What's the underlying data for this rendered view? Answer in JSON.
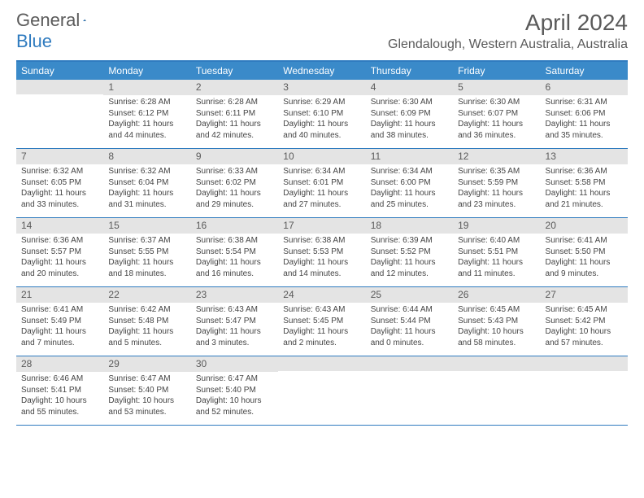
{
  "brand": {
    "general": "General",
    "blue": "Blue"
  },
  "title": "April 2024",
  "location": "Glendalough, Western Australia, Australia",
  "colors": {
    "header_bg": "#3a8ac9",
    "border": "#2f7bbf",
    "daynum_bg": "#e4e4e4",
    "text": "#5a5a5a"
  },
  "dayNames": [
    "Sunday",
    "Monday",
    "Tuesday",
    "Wednesday",
    "Thursday",
    "Friday",
    "Saturday"
  ],
  "weeks": [
    [
      null,
      {
        "n": "1",
        "sr": "Sunrise: 6:28 AM",
        "ss": "Sunset: 6:12 PM",
        "d1": "Daylight: 11 hours",
        "d2": "and 44 minutes."
      },
      {
        "n": "2",
        "sr": "Sunrise: 6:28 AM",
        "ss": "Sunset: 6:11 PM",
        "d1": "Daylight: 11 hours",
        "d2": "and 42 minutes."
      },
      {
        "n": "3",
        "sr": "Sunrise: 6:29 AM",
        "ss": "Sunset: 6:10 PM",
        "d1": "Daylight: 11 hours",
        "d2": "and 40 minutes."
      },
      {
        "n": "4",
        "sr": "Sunrise: 6:30 AM",
        "ss": "Sunset: 6:09 PM",
        "d1": "Daylight: 11 hours",
        "d2": "and 38 minutes."
      },
      {
        "n": "5",
        "sr": "Sunrise: 6:30 AM",
        "ss": "Sunset: 6:07 PM",
        "d1": "Daylight: 11 hours",
        "d2": "and 36 minutes."
      },
      {
        "n": "6",
        "sr": "Sunrise: 6:31 AM",
        "ss": "Sunset: 6:06 PM",
        "d1": "Daylight: 11 hours",
        "d2": "and 35 minutes."
      }
    ],
    [
      {
        "n": "7",
        "sr": "Sunrise: 6:32 AM",
        "ss": "Sunset: 6:05 PM",
        "d1": "Daylight: 11 hours",
        "d2": "and 33 minutes."
      },
      {
        "n": "8",
        "sr": "Sunrise: 6:32 AM",
        "ss": "Sunset: 6:04 PM",
        "d1": "Daylight: 11 hours",
        "d2": "and 31 minutes."
      },
      {
        "n": "9",
        "sr": "Sunrise: 6:33 AM",
        "ss": "Sunset: 6:02 PM",
        "d1": "Daylight: 11 hours",
        "d2": "and 29 minutes."
      },
      {
        "n": "10",
        "sr": "Sunrise: 6:34 AM",
        "ss": "Sunset: 6:01 PM",
        "d1": "Daylight: 11 hours",
        "d2": "and 27 minutes."
      },
      {
        "n": "11",
        "sr": "Sunrise: 6:34 AM",
        "ss": "Sunset: 6:00 PM",
        "d1": "Daylight: 11 hours",
        "d2": "and 25 minutes."
      },
      {
        "n": "12",
        "sr": "Sunrise: 6:35 AM",
        "ss": "Sunset: 5:59 PM",
        "d1": "Daylight: 11 hours",
        "d2": "and 23 minutes."
      },
      {
        "n": "13",
        "sr": "Sunrise: 6:36 AM",
        "ss": "Sunset: 5:58 PM",
        "d1": "Daylight: 11 hours",
        "d2": "and 21 minutes."
      }
    ],
    [
      {
        "n": "14",
        "sr": "Sunrise: 6:36 AM",
        "ss": "Sunset: 5:57 PM",
        "d1": "Daylight: 11 hours",
        "d2": "and 20 minutes."
      },
      {
        "n": "15",
        "sr": "Sunrise: 6:37 AM",
        "ss": "Sunset: 5:55 PM",
        "d1": "Daylight: 11 hours",
        "d2": "and 18 minutes."
      },
      {
        "n": "16",
        "sr": "Sunrise: 6:38 AM",
        "ss": "Sunset: 5:54 PM",
        "d1": "Daylight: 11 hours",
        "d2": "and 16 minutes."
      },
      {
        "n": "17",
        "sr": "Sunrise: 6:38 AM",
        "ss": "Sunset: 5:53 PM",
        "d1": "Daylight: 11 hours",
        "d2": "and 14 minutes."
      },
      {
        "n": "18",
        "sr": "Sunrise: 6:39 AM",
        "ss": "Sunset: 5:52 PM",
        "d1": "Daylight: 11 hours",
        "d2": "and 12 minutes."
      },
      {
        "n": "19",
        "sr": "Sunrise: 6:40 AM",
        "ss": "Sunset: 5:51 PM",
        "d1": "Daylight: 11 hours",
        "d2": "and 11 minutes."
      },
      {
        "n": "20",
        "sr": "Sunrise: 6:41 AM",
        "ss": "Sunset: 5:50 PM",
        "d1": "Daylight: 11 hours",
        "d2": "and 9 minutes."
      }
    ],
    [
      {
        "n": "21",
        "sr": "Sunrise: 6:41 AM",
        "ss": "Sunset: 5:49 PM",
        "d1": "Daylight: 11 hours",
        "d2": "and 7 minutes."
      },
      {
        "n": "22",
        "sr": "Sunrise: 6:42 AM",
        "ss": "Sunset: 5:48 PM",
        "d1": "Daylight: 11 hours",
        "d2": "and 5 minutes."
      },
      {
        "n": "23",
        "sr": "Sunrise: 6:43 AM",
        "ss": "Sunset: 5:47 PM",
        "d1": "Daylight: 11 hours",
        "d2": "and 3 minutes."
      },
      {
        "n": "24",
        "sr": "Sunrise: 6:43 AM",
        "ss": "Sunset: 5:45 PM",
        "d1": "Daylight: 11 hours",
        "d2": "and 2 minutes."
      },
      {
        "n": "25",
        "sr": "Sunrise: 6:44 AM",
        "ss": "Sunset: 5:44 PM",
        "d1": "Daylight: 11 hours",
        "d2": "and 0 minutes."
      },
      {
        "n": "26",
        "sr": "Sunrise: 6:45 AM",
        "ss": "Sunset: 5:43 PM",
        "d1": "Daylight: 10 hours",
        "d2": "and 58 minutes."
      },
      {
        "n": "27",
        "sr": "Sunrise: 6:45 AM",
        "ss": "Sunset: 5:42 PM",
        "d1": "Daylight: 10 hours",
        "d2": "and 57 minutes."
      }
    ],
    [
      {
        "n": "28",
        "sr": "Sunrise: 6:46 AM",
        "ss": "Sunset: 5:41 PM",
        "d1": "Daylight: 10 hours",
        "d2": "and 55 minutes."
      },
      {
        "n": "29",
        "sr": "Sunrise: 6:47 AM",
        "ss": "Sunset: 5:40 PM",
        "d1": "Daylight: 10 hours",
        "d2": "and 53 minutes."
      },
      {
        "n": "30",
        "sr": "Sunrise: 6:47 AM",
        "ss": "Sunset: 5:40 PM",
        "d1": "Daylight: 10 hours",
        "d2": "and 52 minutes."
      },
      null,
      null,
      null,
      null
    ]
  ]
}
